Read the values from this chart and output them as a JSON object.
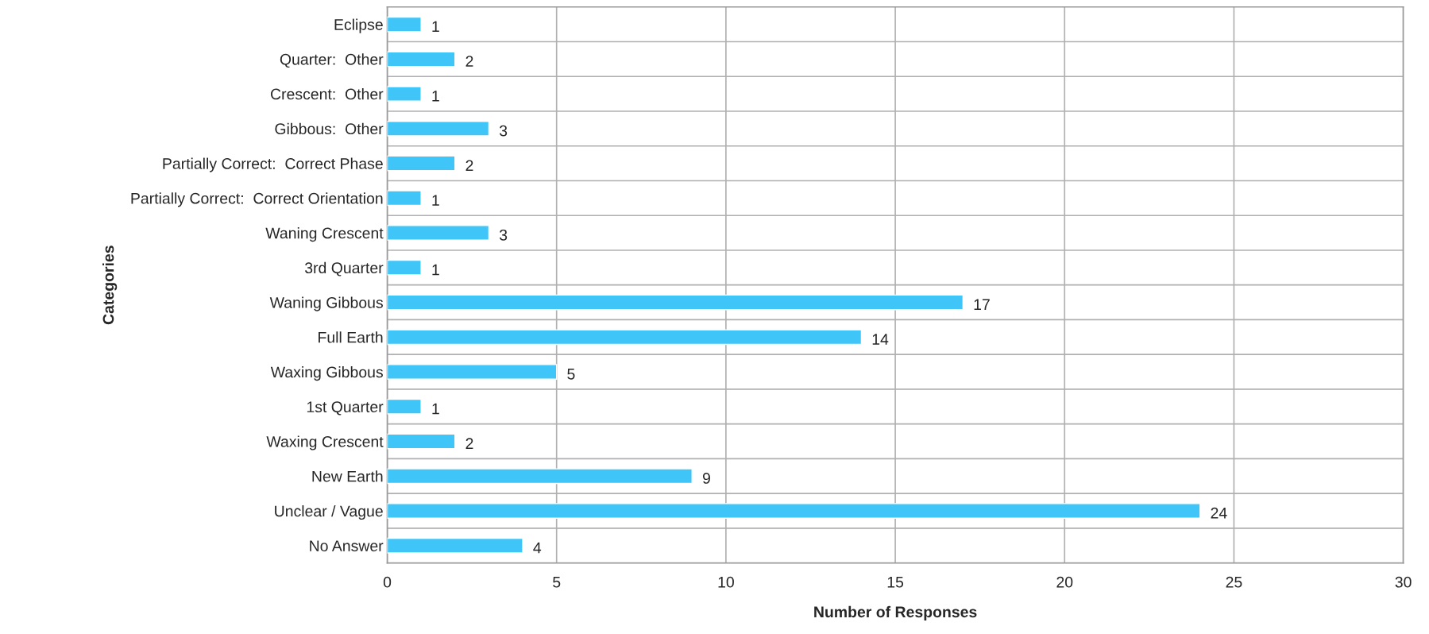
{
  "chart_data": {
    "type": "bar",
    "orientation": "horizontal",
    "categories": [
      "Eclipse",
      "Quarter:  Other",
      "Crescent:  Other",
      "Gibbous:  Other",
      "Partially Correct:  Correct Phase",
      "Partially Correct:  Correct Orientation",
      "Waning Crescent",
      "3rd Quarter",
      "Waning Gibbous",
      "Full Earth",
      "Waxing Gibbous",
      "1st Quarter",
      "Waxing Crescent",
      "New Earth",
      "Unclear / Vague",
      "No Answer"
    ],
    "values": [
      1,
      2,
      1,
      3,
      2,
      1,
      3,
      1,
      17,
      14,
      5,
      1,
      2,
      9,
      24,
      4
    ],
    "color": "#3fc5f7",
    "xlim": [
      0,
      30
    ],
    "xticks": [
      0,
      5,
      10,
      15,
      20,
      25,
      30
    ],
    "xlabel": "Number of Responses",
    "ylabel": "Categories",
    "grid": true,
    "data_labels": true
  }
}
